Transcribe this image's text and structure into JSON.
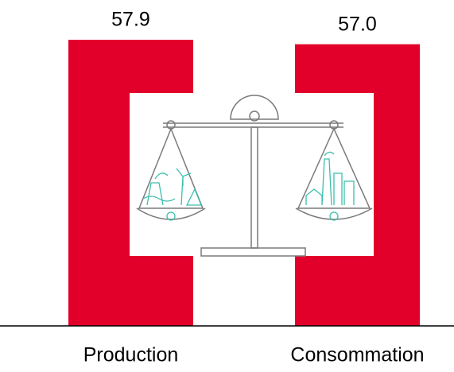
{
  "chart_data": {
    "type": "bar",
    "categories": [
      "Production",
      "Consommation"
    ],
    "values": [
      57.9,
      57.0
    ],
    "value_labels": [
      "57.9",
      "57.0"
    ],
    "color": "#e2002b",
    "ylim": [
      0,
      60
    ]
  }
}
